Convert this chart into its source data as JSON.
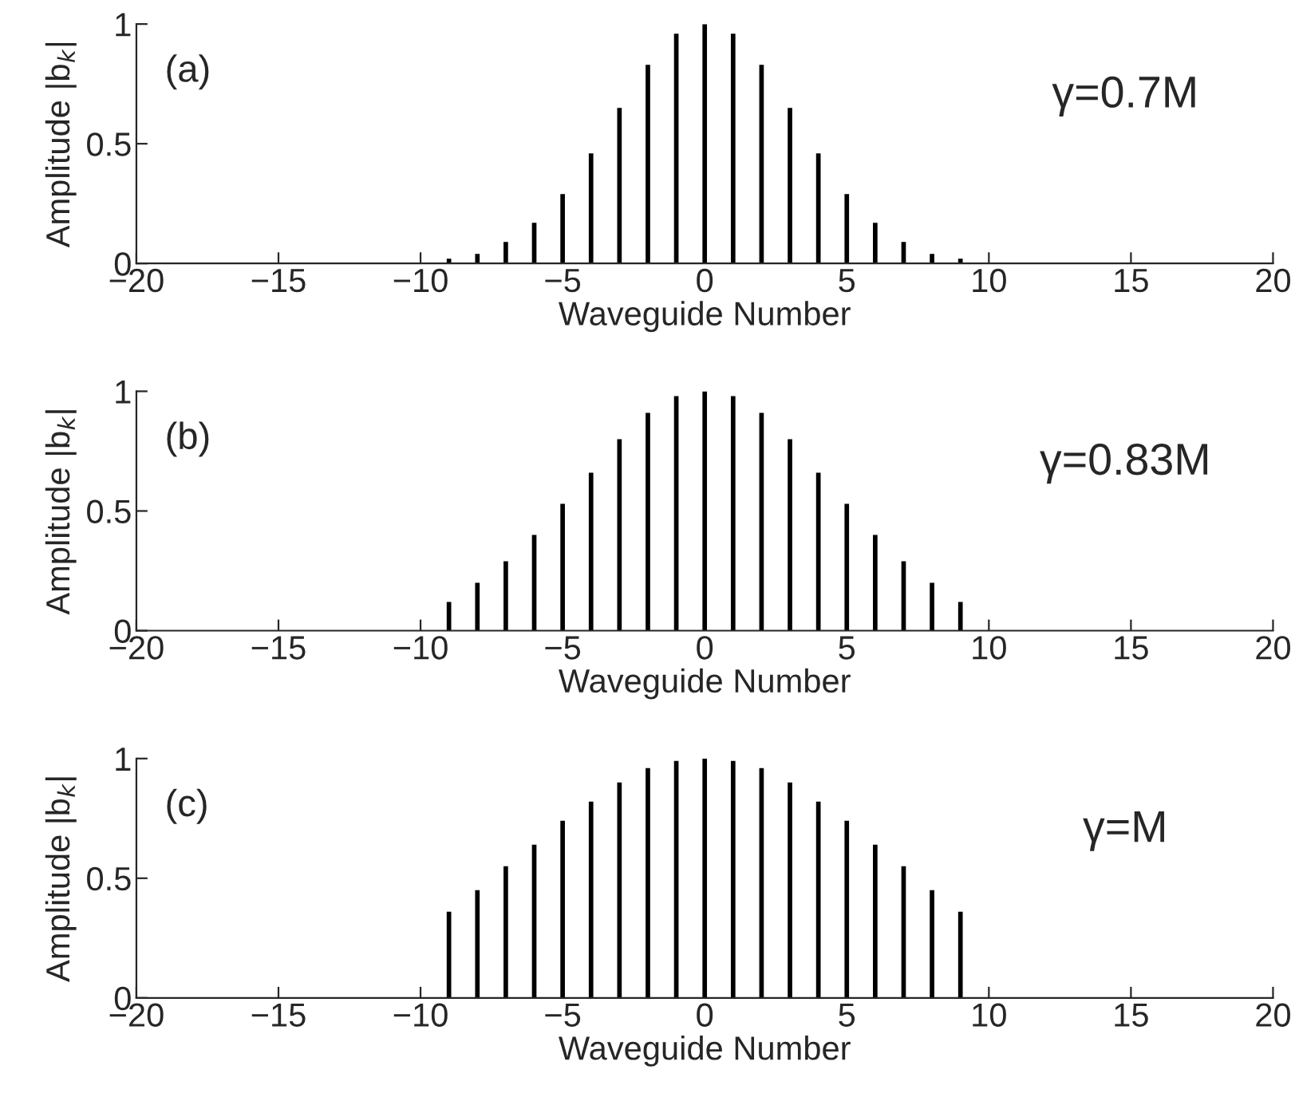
{
  "chart_data": [
    {
      "type": "bar",
      "xlabel": "Waveguide Number",
      "ylabel": "Amplitude |b$_{k}$|",
      "annotations": [
        "(a)",
        "γ=0.7M"
      ],
      "x": [
        -9,
        -8,
        -7,
        -6,
        -5,
        -4,
        -3,
        -2,
        -1,
        0,
        1,
        2,
        3,
        4,
        5,
        6,
        7,
        8,
        9
      ],
      "series": [
        {
          "color": "#000000",
          "values": [
            0.02,
            0.04,
            0.09,
            0.17,
            0.29,
            0.46,
            0.65,
            0.83,
            0.96,
            1.0,
            0.96,
            0.83,
            0.65,
            0.46,
            0.29,
            0.17,
            0.09,
            0.04,
            0.02
          ]
        }
      ],
      "xlim": [
        -20,
        20
      ],
      "xticks": [
        {
          "value": -20,
          "label": "−20"
        },
        {
          "value": -15,
          "label": "−15"
        },
        {
          "value": -10,
          "label": "−10"
        },
        {
          "value": -5,
          "label": "−5"
        },
        0,
        5,
        10,
        15,
        20
      ],
      "ylim": [
        0,
        1
      ],
      "yticks": [
        0,
        0.5,
        1
      ],
      "grid": false,
      "legend": false
    },
    {
      "type": "bar",
      "xlabel": "Waveguide Number",
      "ylabel": "Amplitude |b$_{k}$|",
      "annotations": [
        "(b)",
        "γ=0.83M"
      ],
      "x": [
        -9,
        -8,
        -7,
        -6,
        -5,
        -4,
        -3,
        -2,
        -1,
        0,
        1,
        2,
        3,
        4,
        5,
        6,
        7,
        8,
        9
      ],
      "series": [
        {
          "color": "#000000",
          "values": [
            0.12,
            0.2,
            0.29,
            0.4,
            0.53,
            0.66,
            0.8,
            0.91,
            0.98,
            1.0,
            0.98,
            0.91,
            0.8,
            0.66,
            0.53,
            0.4,
            0.29,
            0.2,
            0.12
          ]
        }
      ],
      "xlim": [
        -20,
        20
      ],
      "xticks": [
        {
          "value": -20,
          "label": "−20"
        },
        {
          "value": -15,
          "label": "−15"
        },
        {
          "value": -10,
          "label": "−10"
        },
        {
          "value": -5,
          "label": "−5"
        },
        0,
        5,
        10,
        15,
        20
      ],
      "ylim": [
        0,
        1
      ],
      "yticks": [
        0,
        0.5,
        1
      ],
      "grid": false,
      "legend": false
    },
    {
      "type": "bar",
      "xlabel": "Waveguide Number",
      "ylabel": "Amplitude |b$_{k}$|",
      "annotations": [
        "(c)",
        "γ=M"
      ],
      "x": [
        -9,
        -8,
        -7,
        -6,
        -5,
        -4,
        -3,
        -2,
        -1,
        0,
        1,
        2,
        3,
        4,
        5,
        6,
        7,
        8,
        9
      ],
      "series": [
        {
          "color": "#000000",
          "values": [
            0.36,
            0.45,
            0.55,
            0.64,
            0.74,
            0.82,
            0.9,
            0.96,
            0.99,
            1.0,
            0.99,
            0.96,
            0.9,
            0.82,
            0.74,
            0.64,
            0.55,
            0.45,
            0.36
          ]
        }
      ],
      "xlim": [
        -20,
        20
      ],
      "xticks": [
        {
          "value": -20,
          "label": "−20"
        },
        {
          "value": -15,
          "label": "−15"
        },
        {
          "value": -10,
          "label": "−10"
        },
        {
          "value": -5,
          "label": "−5"
        },
        0,
        5,
        10,
        15,
        20
      ],
      "ylim": [
        0,
        1
      ],
      "yticks": [
        0,
        0.5,
        1
      ],
      "grid": false,
      "legend": false
    }
  ]
}
